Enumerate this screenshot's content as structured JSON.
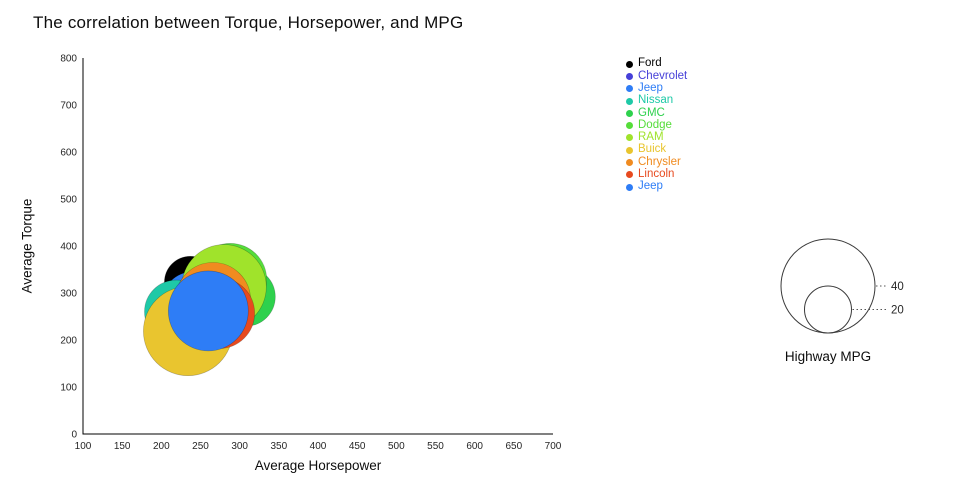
{
  "chart_data": {
    "type": "scatter",
    "title": "The correlation between Torque, Horsepower, and MPG",
    "xlabel": "Average Horsepower",
    "ylabel": "Average Torque",
    "xlim": [
      100,
      700
    ],
    "ylim": [
      0,
      800
    ],
    "x_ticks": [
      100,
      150,
      200,
      250,
      300,
      350,
      400,
      450,
      500,
      550,
      600,
      650,
      700
    ],
    "y_ticks": [
      0,
      100,
      200,
      300,
      400,
      500,
      600,
      700,
      800
    ],
    "grid": false,
    "legend_position": "top-right",
    "size_legend": {
      "title": "Highway MPG",
      "values": [
        40,
        20
      ]
    },
    "series": [
      {
        "name": "Ford",
        "color": "#000000",
        "x": 237,
        "y": 323,
        "highway_mpg": 22
      },
      {
        "name": "Chevrolet",
        "color": "#4640d8",
        "x": 249,
        "y": 285,
        "highway_mpg": 26
      },
      {
        "name": "Jeep",
        "color": "#2e7df6",
        "x": 240,
        "y": 280,
        "highway_mpg": 26
      },
      {
        "name": "Nissan",
        "color": "#1ec9a7",
        "x": 219,
        "y": 260,
        "highway_mpg": 27
      },
      {
        "name": "GMC",
        "color": "#2ed14d",
        "x": 308,
        "y": 292,
        "highway_mpg": 25
      },
      {
        "name": "Dodge",
        "color": "#55dd3a",
        "x": 288,
        "y": 328,
        "highway_mpg": 31
      },
      {
        "name": "RAM",
        "color": "#a0e32b",
        "x": 280,
        "y": 313,
        "highway_mpg": 36
      },
      {
        "name": "Buick",
        "color": "#e9c52f",
        "x": 234,
        "y": 219,
        "highway_mpg": 38
      },
      {
        "name": "Chrysler",
        "color": "#f08b20",
        "x": 266,
        "y": 285,
        "highway_mpg": 32
      },
      {
        "name": "Lincoln",
        "color": "#e74a1f",
        "x": 274,
        "y": 257,
        "highway_mpg": 30
      },
      {
        "name": "Jeep",
        "color": "#2e7df6",
        "x": 260,
        "y": 262,
        "highway_mpg": 34
      }
    ]
  }
}
